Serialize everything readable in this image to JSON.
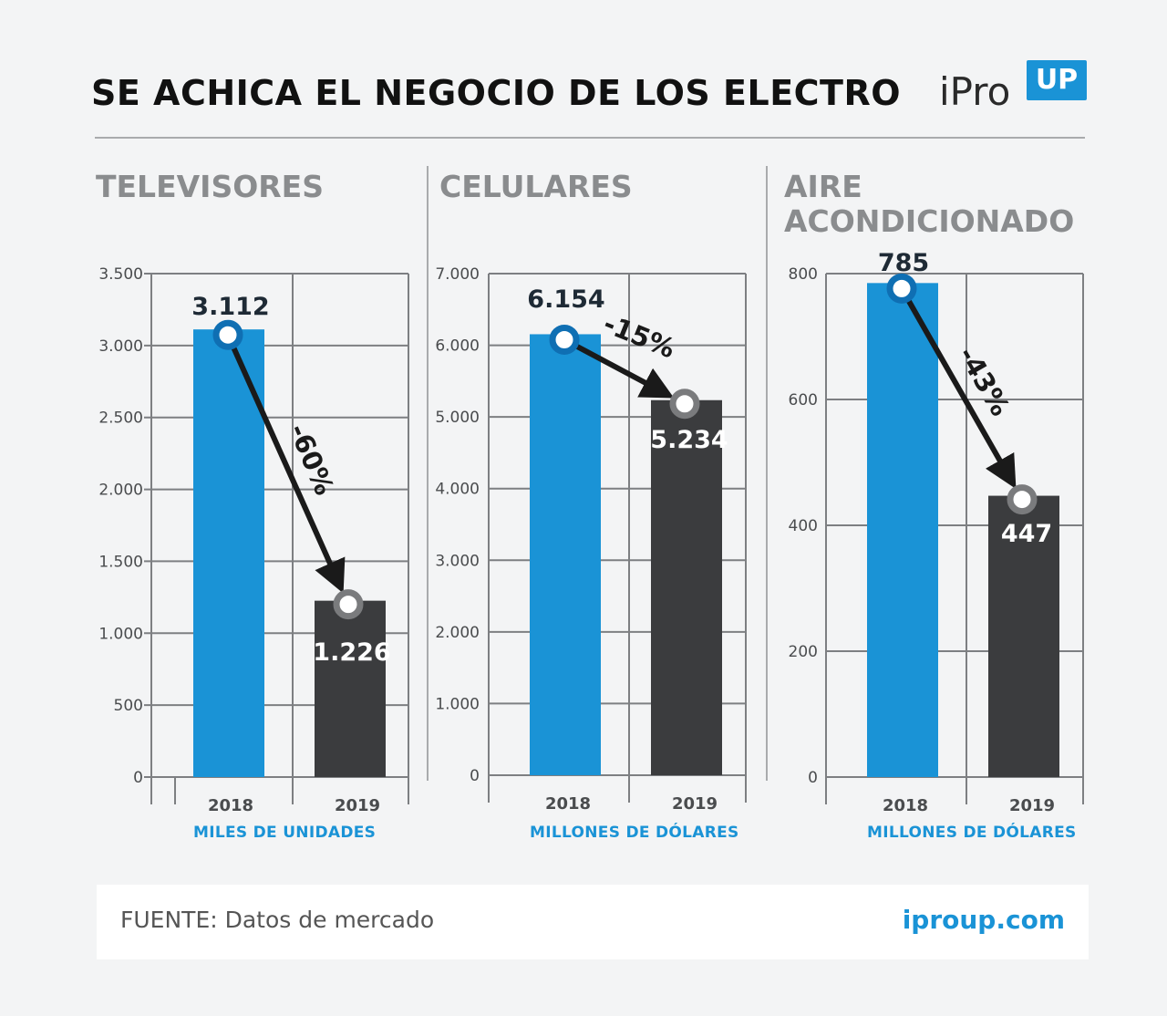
{
  "header": {
    "title": "SE ACHICA EL NEGOCIO DE LOS ELECTRO",
    "logo_ipro": "iPro",
    "logo_up": "UP"
  },
  "colors": {
    "accent": "#1a93d6",
    "bar_2019": "#3b3c3e",
    "grid": "#7d7f82",
    "panel_title": "#8a8c8e"
  },
  "footer": {
    "source": "FUENTE: Datos de mercado",
    "site": "iproup.com"
  },
  "chart_data": [
    {
      "type": "bar",
      "title": "TELEVISORES",
      "categories": [
        "2018",
        "2019"
      ],
      "values": [
        3112,
        1226
      ],
      "value_labels": [
        "3.112",
        "1.226"
      ],
      "change_label": "-60%",
      "ylim": [
        0,
        3500
      ],
      "yticks": [
        0,
        500,
        1000,
        1500,
        2000,
        2500,
        3000,
        3500
      ],
      "ytick_labels": [
        "0",
        "500",
        "1.000",
        "1.500",
        "2.000",
        "2.500",
        "3.000",
        "3.500"
      ],
      "unit": "MILES DE UNIDADES",
      "grid": true
    },
    {
      "type": "bar",
      "title": "CELULARES",
      "categories": [
        "2018",
        "2019"
      ],
      "values": [
        6154,
        5234
      ],
      "value_labels": [
        "6.154",
        "5.234"
      ],
      "change_label": "-15%",
      "ylim": [
        0,
        7000
      ],
      "yticks": [
        0,
        1000,
        2000,
        3000,
        4000,
        5000,
        6000,
        7000
      ],
      "ytick_labels": [
        "0",
        "1.000",
        "2.000",
        "3.000",
        "4.000",
        "5.000",
        "6.000",
        "7.000"
      ],
      "unit": "MILLONES DE DÓLARES",
      "grid": true
    },
    {
      "type": "bar",
      "title": "AIRE ACONDICIONADO",
      "title_lines": [
        "AIRE",
        "ACONDICIONADO"
      ],
      "categories": [
        "2018",
        "2019"
      ],
      "values": [
        785,
        447
      ],
      "value_labels": [
        "785",
        "447"
      ],
      "change_label": "-43%",
      "ylim": [
        0,
        800
      ],
      "yticks": [
        0,
        200,
        400,
        600,
        800
      ],
      "ytick_labels": [
        "0",
        "200",
        "400",
        "600",
        "800"
      ],
      "unit": "MILLONES DE DÓLARES",
      "grid": true
    }
  ]
}
